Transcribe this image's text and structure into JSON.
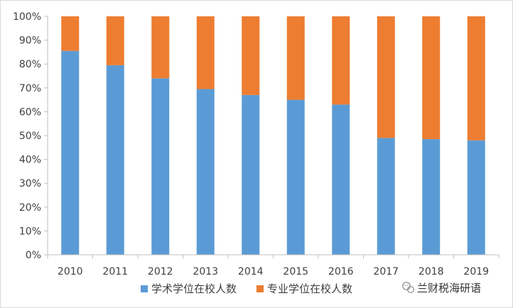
{
  "chart_data": {
    "type": "bar",
    "stacked": true,
    "categories": [
      "2010",
      "2011",
      "2012",
      "2013",
      "2014",
      "2015",
      "2016",
      "2017",
      "2018",
      "2019"
    ],
    "series": [
      {
        "name": "学术学位在校人数",
        "color": "#5b9bd5",
        "values": [
          0.855,
          0.795,
          0.74,
          0.695,
          0.67,
          0.65,
          0.63,
          0.49,
          0.485,
          0.48
        ]
      },
      {
        "name": "专业学位在校人数",
        "color": "#ed7d31",
        "values": [
          0.145,
          0.205,
          0.26,
          0.305,
          0.33,
          0.35,
          0.37,
          0.51,
          0.515,
          0.52
        ]
      }
    ],
    "ylim": [
      0,
      1
    ],
    "y_ticks": [
      "0%",
      "10%",
      "20%",
      "30%",
      "40%",
      "50%",
      "60%",
      "70%",
      "80%",
      "90%",
      "100%"
    ],
    "grid": false,
    "legend_position": "bottom",
    "title": "",
    "xlabel": "",
    "ylabel": ""
  },
  "watermark": {
    "text": "兰财税海研语",
    "icon": "wechat-icon"
  }
}
